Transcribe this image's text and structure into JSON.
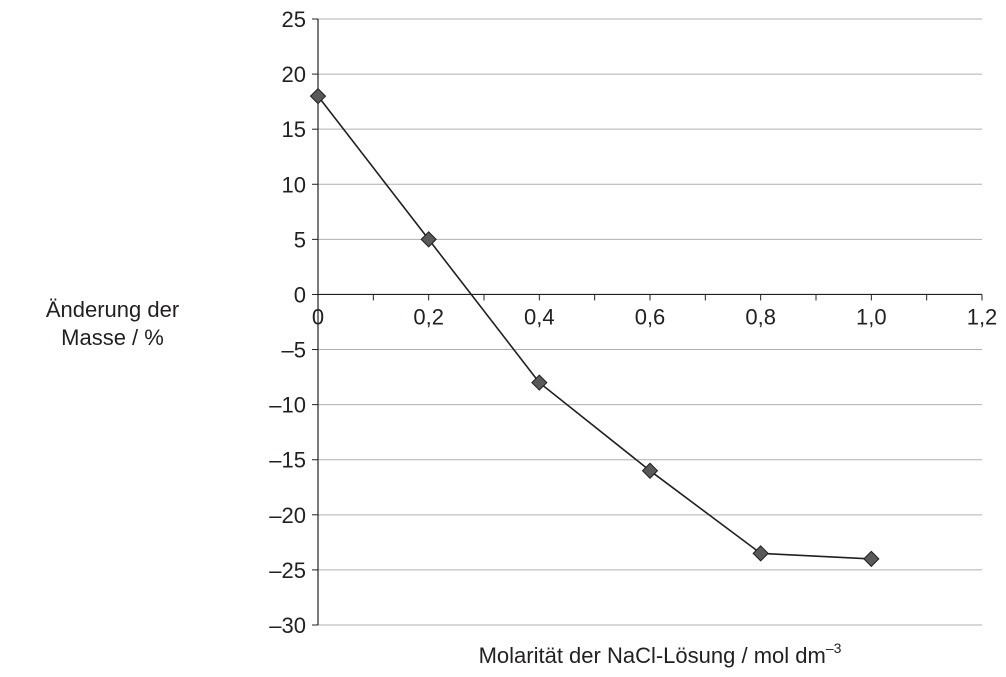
{
  "chart_data": {
    "type": "line",
    "title": "",
    "ylabel": [
      "Änderung der",
      "Masse / %"
    ],
    "xlabel": {
      "text": "Molarität der NaCl-Lösung / mol dm",
      "superscript": "–3"
    },
    "xlim": [
      0,
      1.2
    ],
    "ylim": [
      -30,
      25
    ],
    "x_ticks": [
      0,
      0.1,
      0.2,
      0.3,
      0.4,
      0.5,
      0.6,
      0.7,
      0.8,
      0.9,
      1.0,
      1.1,
      1.2
    ],
    "x_tick_labels": [
      {
        "value": 0,
        "label": "0"
      },
      {
        "value": 0.2,
        "label": "0,2"
      },
      {
        "value": 0.4,
        "label": "0,4"
      },
      {
        "value": 0.6,
        "label": "0,6"
      },
      {
        "value": 0.8,
        "label": "0,8"
      },
      {
        "value": 1.0,
        "label": "1,0"
      },
      {
        "value": 1.2,
        "label": "1,2"
      }
    ],
    "y_ticks": [
      {
        "value": 25,
        "label": "25"
      },
      {
        "value": 20,
        "label": "20"
      },
      {
        "value": 15,
        "label": "15"
      },
      {
        "value": 10,
        "label": "10"
      },
      {
        "value": 5,
        "label": "5"
      },
      {
        "value": 0,
        "label": "0"
      },
      {
        "value": -5,
        "label": "–5"
      },
      {
        "value": -10,
        "label": "–10"
      },
      {
        "value": -15,
        "label": "–15"
      },
      {
        "value": -20,
        "label": "–20"
      },
      {
        "value": -25,
        "label": "–25"
      },
      {
        "value": -30,
        "label": "–30"
      }
    ],
    "grid": {
      "horizontal": true,
      "vertical": false
    },
    "legend": "none",
    "series": [
      {
        "x": [
          0,
          0.2,
          0.4,
          0.6,
          0.8,
          1.0
        ],
        "y": [
          18,
          5,
          -8,
          -16,
          -23.5,
          -24
        ],
        "marker": "diamond",
        "line_color": "#231f20",
        "marker_color": "#58595b"
      }
    ],
    "colors": {
      "grid": "#b0b0b0",
      "axis": "#231f20",
      "text": "#231f20"
    }
  }
}
